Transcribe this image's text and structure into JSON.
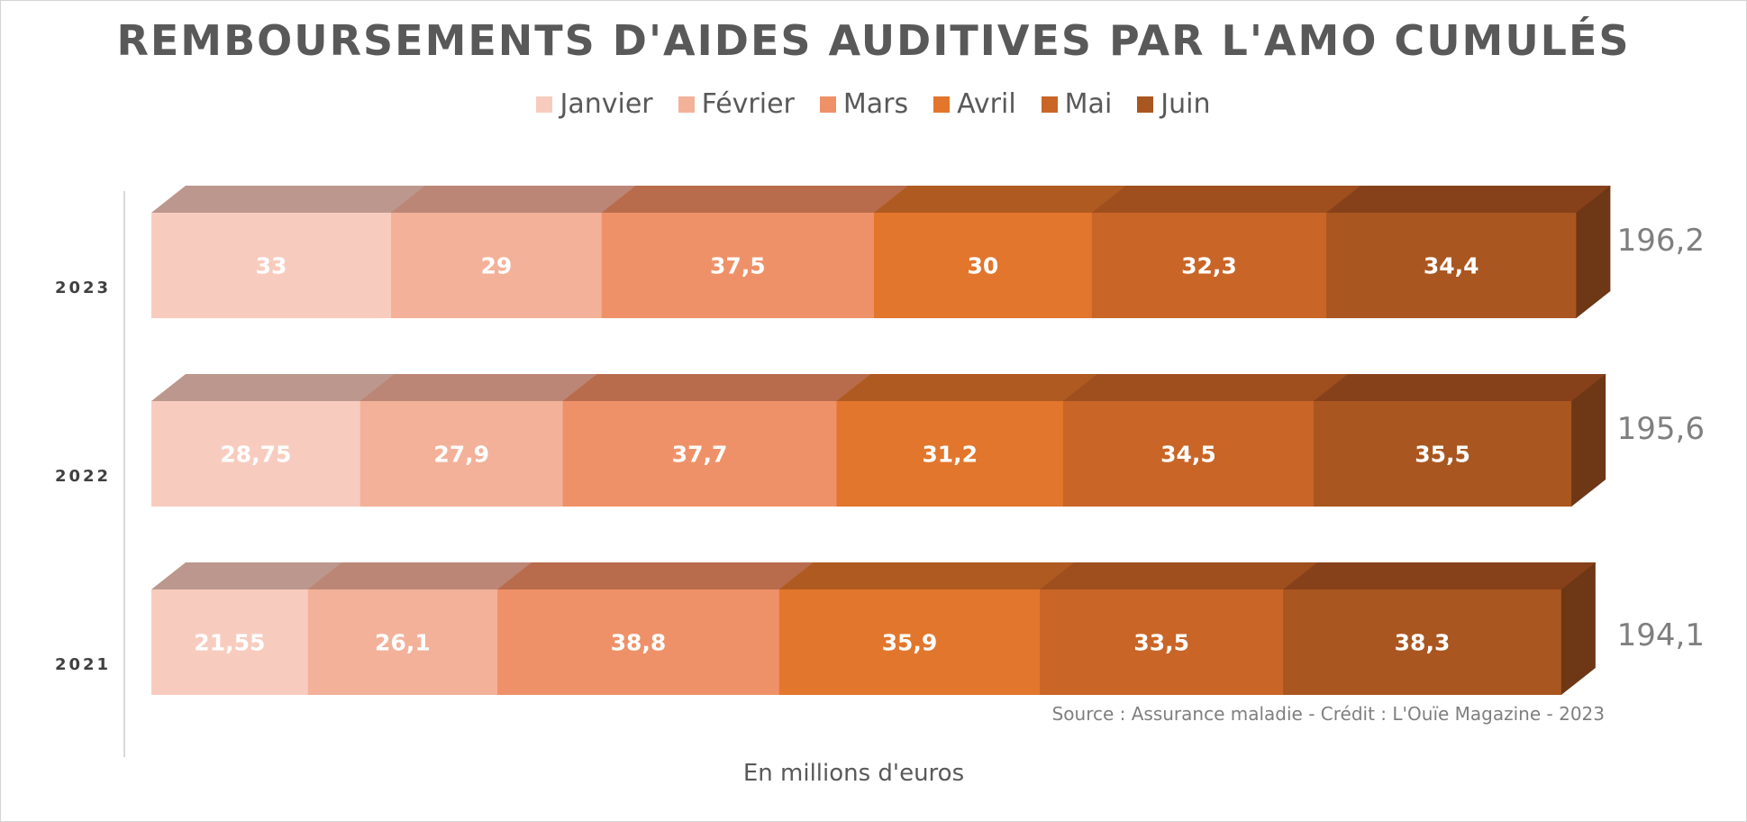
{
  "chart_data": {
    "type": "bar",
    "orientation": "horizontal",
    "stacked": true,
    "title": "REMBOURSEMENTS D'AIDES AUDITIVES PAR L'AMO CUMULÉS",
    "xlabel": "En millions d'euros",
    "ylabel": "",
    "categories": [
      "2023",
      "2022",
      "2021"
    ],
    "series": [
      {
        "name": "Janvier",
        "values": [
          33,
          28.75,
          21.55
        ],
        "labels": [
          "33",
          "28,75",
          "21,55"
        ],
        "color": "#F7CCBF",
        "top": "#BC978D",
        "side": "#8A6A63"
      },
      {
        "name": "Février",
        "values": [
          29,
          27.9,
          26.1
        ],
        "labels": [
          "29",
          "27,9",
          "26,1"
        ],
        "color": "#F3B199",
        "top": "#BB8676",
        "side": "#8A6152"
      },
      {
        "name": "Mars",
        "values": [
          37.5,
          37.7,
          38.8
        ],
        "labels": [
          "37,5",
          "37,7",
          "38,8"
        ],
        "color": "#EF9168",
        "top": "#B86C4C",
        "side": "#8C4E34"
      },
      {
        "name": "Avril",
        "values": [
          30,
          31.2,
          35.9
        ],
        "labels": [
          "30",
          "31,2",
          "35,9"
        ],
        "color": "#E2762D",
        "top": "#AF5A20",
        "side": "#834116"
      },
      {
        "name": "Mai",
        "values": [
          32.3,
          34.5,
          33.5
        ],
        "labels": [
          "32,3",
          "34,5",
          "33,5"
        ],
        "color": "#C96527",
        "top": "#9F4E1D",
        "side": "#773915"
      },
      {
        "name": "Juin",
        "values": [
          34.4,
          35.5,
          38.3
        ],
        "labels": [
          "34,4",
          "35,5",
          "38,3"
        ],
        "color": "#AA5620",
        "top": "#87411A",
        "side": "#6E3715"
      }
    ],
    "totals": [
      196.2,
      195.6,
      194.1
    ],
    "total_labels": [
      "196,2",
      "195,6",
      "194,1"
    ],
    "legend_position": "top",
    "grid": false,
    "data_labels": true,
    "style": "3d"
  },
  "source": "Source : Assurance maladie - Crédit : L'Ouïe Magazine - 2023"
}
